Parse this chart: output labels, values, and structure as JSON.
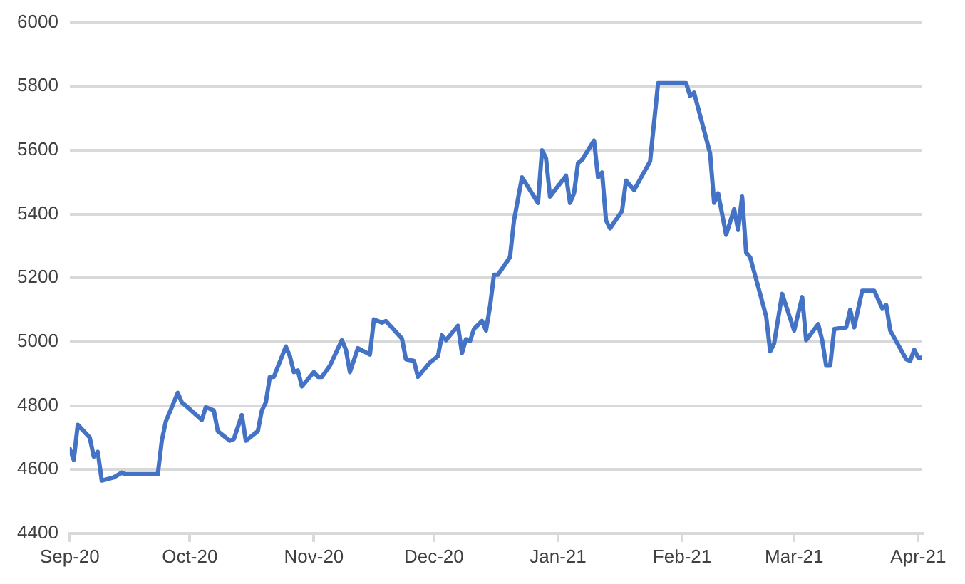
{
  "chart_data": {
    "type": "line",
    "grid": "y",
    "marker": "none",
    "line_style": "solid",
    "xlim": [
      "2020-09-01",
      "2021-04-02"
    ],
    "xticks": [
      {
        "value": "2020-09-01",
        "label": "Sep-20"
      },
      {
        "value": "2020-10-01",
        "label": "Oct-20"
      },
      {
        "value": "2020-11-01",
        "label": "Nov-20"
      },
      {
        "value": "2020-12-01",
        "label": "Dec-20"
      },
      {
        "value": "2021-01-01",
        "label": "Jan-21"
      },
      {
        "value": "2021-02-01",
        "label": "Feb-21"
      },
      {
        "value": "2021-03-01",
        "label": "Mar-21"
      },
      {
        "value": "2021-04-01",
        "label": "Apr-21"
      }
    ],
    "ylim": [
      4400,
      6000
    ],
    "yticks": [
      4400,
      4600,
      4800,
      5000,
      5200,
      5400,
      5600,
      5800,
      6000
    ],
    "x": [
      "2020-09-01",
      "2020-09-02",
      "2020-09-03",
      "2020-09-06",
      "2020-09-07",
      "2020-09-08",
      "2020-09-09",
      "2020-09-12",
      "2020-09-14",
      "2020-09-15",
      "2020-09-23",
      "2020-09-24",
      "2020-09-25",
      "2020-09-28",
      "2020-09-29",
      "2020-09-30",
      "2020-10-04",
      "2020-10-05",
      "2020-10-07",
      "2020-10-08",
      "2020-10-11",
      "2020-10-12",
      "2020-10-14",
      "2020-10-15",
      "2020-10-18",
      "2020-10-19",
      "2020-10-20",
      "2020-10-21",
      "2020-10-22",
      "2020-10-25",
      "2020-10-26",
      "2020-10-27",
      "2020-10-28",
      "2020-10-29",
      "2020-11-01",
      "2020-11-02",
      "2020-11-03",
      "2020-11-05",
      "2020-11-08",
      "2020-11-09",
      "2020-11-10",
      "2020-11-12",
      "2020-11-15",
      "2020-11-16",
      "2020-11-18",
      "2020-11-19",
      "2020-11-23",
      "2020-11-24",
      "2020-11-26",
      "2020-11-27",
      "2020-11-30",
      "2020-12-02",
      "2020-12-03",
      "2020-12-04",
      "2020-12-07",
      "2020-12-08",
      "2020-12-09",
      "2020-12-10",
      "2020-12-11",
      "2020-12-13",
      "2020-12-14",
      "2020-12-15",
      "2020-12-16",
      "2020-12-17",
      "2020-12-20",
      "2020-12-21",
      "2020-12-23",
      "2020-12-27",
      "2020-12-28",
      "2020-12-29",
      "2020-12-30",
      "2021-01-03",
      "2021-01-04",
      "2021-01-05",
      "2021-01-06",
      "2021-01-07",
      "2021-01-10",
      "2021-01-11",
      "2021-01-12",
      "2021-01-13",
      "2021-01-14",
      "2021-01-17",
      "2021-01-18",
      "2021-01-20",
      "2021-01-24",
      "2021-01-26",
      "2021-02-02",
      "2021-02-03",
      "2021-02-04",
      "2021-02-08",
      "2021-02-09",
      "2021-02-10",
      "2021-02-12",
      "2021-02-14",
      "2021-02-15",
      "2021-02-16",
      "2021-02-17",
      "2021-02-18",
      "2021-02-22",
      "2021-02-23",
      "2021-02-24",
      "2021-02-26",
      "2021-03-01",
      "2021-03-03",
      "2021-03-04",
      "2021-03-07",
      "2021-03-08",
      "2021-03-09",
      "2021-03-10",
      "2021-03-11",
      "2021-03-14",
      "2021-03-15",
      "2021-03-16",
      "2021-03-18",
      "2021-03-21",
      "2021-03-23",
      "2021-03-24",
      "2021-03-25",
      "2021-03-29",
      "2021-03-30",
      "2021-03-31",
      "2021-04-01",
      "2021-04-02"
    ],
    "series": [
      {
        "color": "#4472c4",
        "values": [
          4665,
          4630,
          4740,
          4700,
          4640,
          4655,
          4565,
          4575,
          4590,
          4585,
          4585,
          4690,
          4750,
          4840,
          4810,
          4800,
          4755,
          4795,
          4785,
          4720,
          4690,
          4695,
          4770,
          4690,
          4720,
          4785,
          4810,
          4890,
          4890,
          4985,
          4955,
          4905,
          4910,
          4860,
          4905,
          4890,
          4890,
          4925,
          5005,
          4975,
          4905,
          4980,
          4960,
          5070,
          5060,
          5065,
          5010,
          4945,
          4940,
          4890,
          4935,
          4955,
          5020,
          5005,
          5050,
          4965,
          5008,
          5002,
          5040,
          5065,
          5035,
          5110,
          5210,
          5210,
          5265,
          5380,
          5515,
          5435,
          5600,
          5575,
          5455,
          5520,
          5435,
          5465,
          5560,
          5570,
          5630,
          5515,
          5530,
          5380,
          5355,
          5410,
          5505,
          5475,
          5565,
          5810,
          5810,
          5770,
          5780,
          5590,
          5435,
          5465,
          5335,
          5415,
          5350,
          5455,
          5280,
          5265,
          5080,
          4970,
          4995,
          5150,
          5035,
          5140,
          5005,
          5055,
          5005,
          4925,
          4925,
          5040,
          5045,
          5100,
          5045,
          5160,
          5160,
          5105,
          5115,
          5035,
          4945,
          4940,
          4975,
          4950,
          4950
        ]
      }
    ]
  }
}
